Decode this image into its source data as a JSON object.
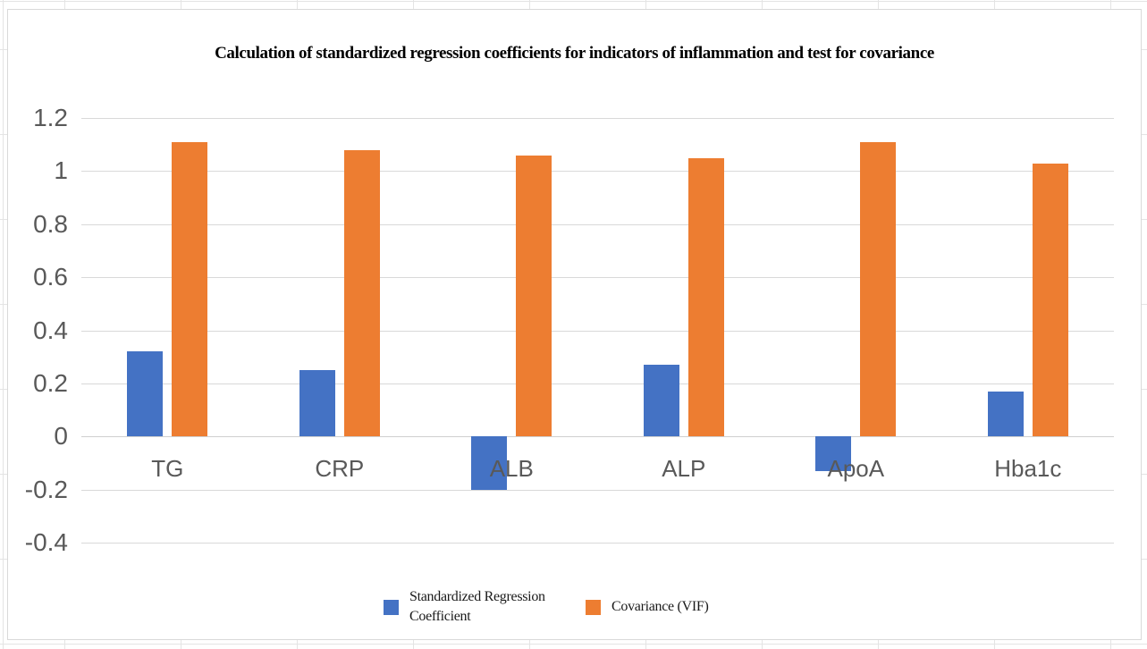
{
  "chart_data": {
    "type": "bar",
    "title": "Calculation of standardized regression coefficients for indicators of inflammation and test for covariance",
    "categories": [
      "TG",
      "CRP",
      "ALB",
      "ALP",
      "ApoA",
      "Hba1c"
    ],
    "series": [
      {
        "name": "Standardized Regression Coefficient",
        "color": "#4472C4",
        "values": [
          0.32,
          0.25,
          -0.2,
          0.27,
          -0.13,
          0.17
        ]
      },
      {
        "name": "Covariance (VIF)",
        "color": "#ED7D31",
        "values": [
          1.11,
          1.08,
          1.06,
          1.05,
          1.11,
          1.03
        ]
      }
    ],
    "ylim": [
      -0.4,
      1.2
    ],
    "yticks": [
      1.2,
      1,
      0.8,
      0.6,
      0.4,
      0.2,
      0,
      -0.2,
      -0.4
    ],
    "ytick_labels": [
      "1.2",
      "1",
      "0.8",
      "0.6",
      "0.4",
      "0.2",
      "0",
      "-0.2",
      "-0.4"
    ],
    "grid": true,
    "legend_position": "bottom",
    "styles": {
      "gridline_color": "#D9D9D9",
      "axis_text_color": "#595959",
      "title_color": "#000000",
      "panel_border_color": "#D9D9D9",
      "background_color": "#FFFFFF"
    }
  }
}
